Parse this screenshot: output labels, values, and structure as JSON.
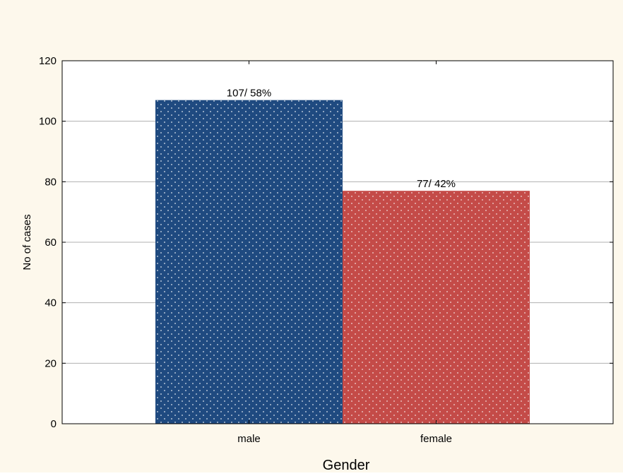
{
  "colors": {
    "background": "#fdf8ec",
    "plot_background": "#ffffff",
    "grid": "#b0b0b0",
    "male_bar": "#1f4a80",
    "female_bar": "#c44b48",
    "dot": "#dfe6ef"
  },
  "chart_data": {
    "type": "bar",
    "categories": [
      "male",
      "female"
    ],
    "values": [
      107,
      77
    ],
    "data_labels": [
      "107/ 58%",
      "77/ 42%"
    ],
    "xlabel": "Gender",
    "ylabel": "No of cases",
    "ylim": [
      0,
      120
    ],
    "yticks": [
      0,
      20,
      40,
      60,
      80,
      100,
      120
    ],
    "grid": true,
    "pattern": "dotted"
  }
}
